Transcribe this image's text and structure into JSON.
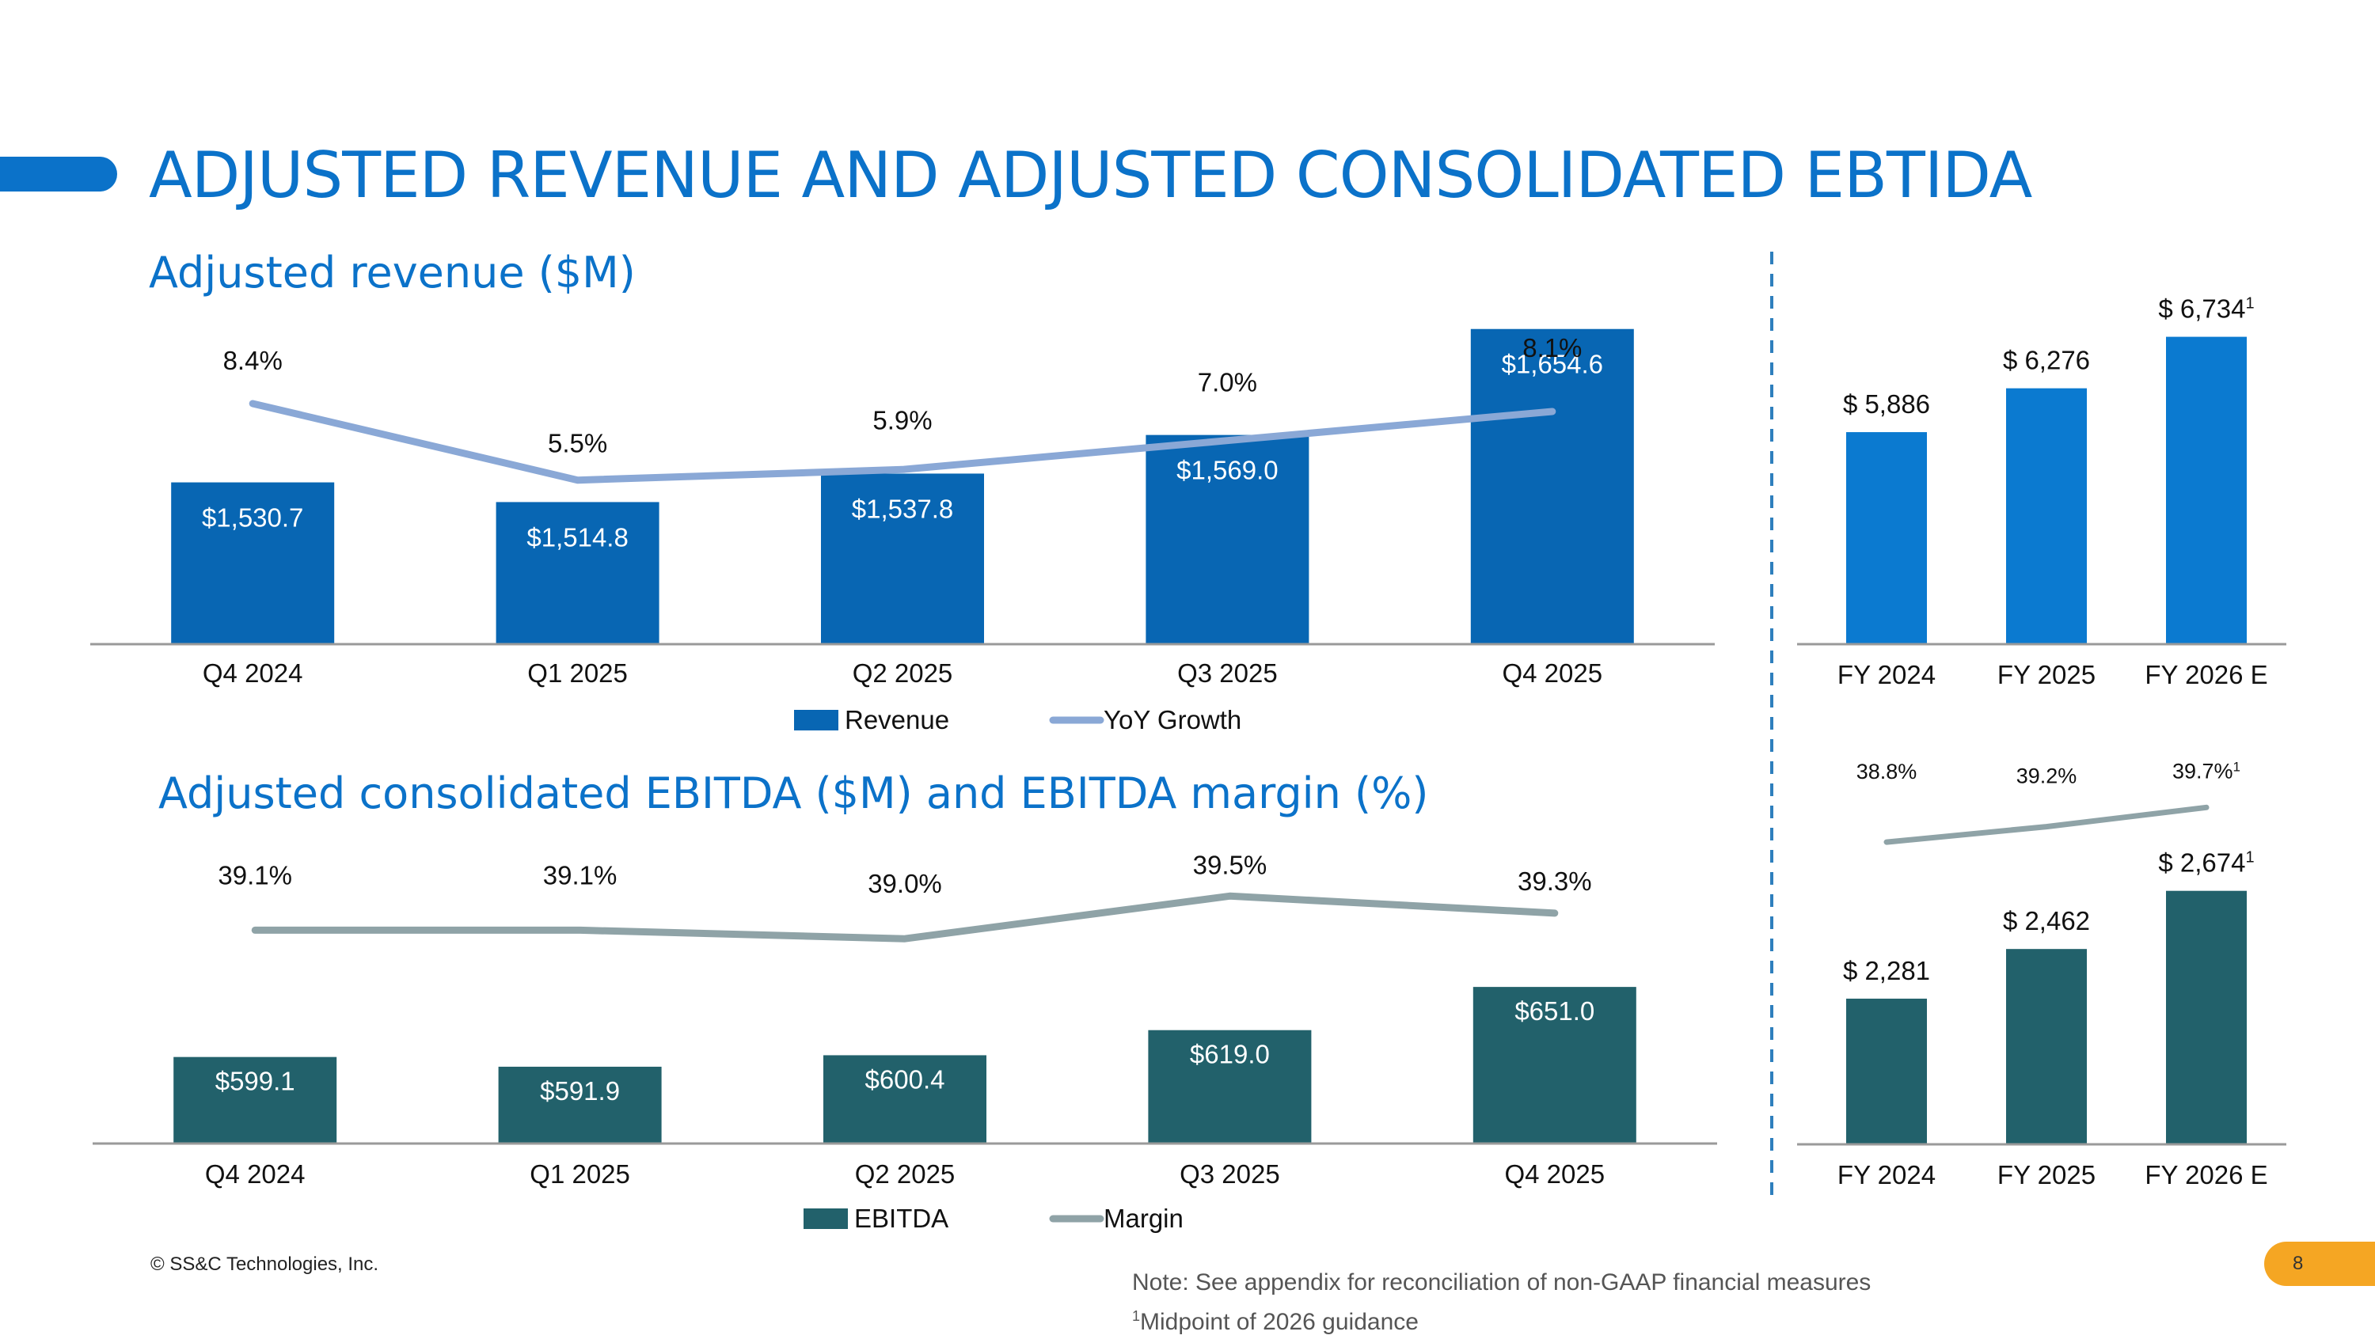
{
  "slide": {
    "title": "ADJUSTED REVENUE AND ADJUSTED CONSOLIDATED EBTIDA",
    "copyright": "© SS&C Technologies, Inc.",
    "page_number": "8",
    "note": "Note: See appendix for reconciliation of non-GAAP financial measures",
    "footnote_marker": "1",
    "footnote_text": "Midpoint of 2026 guidance",
    "colors": {
      "title_blue": "#0b72c9",
      "revenue_bar": "#0866b3",
      "growth_line": "#8aa8d6",
      "annual_revenue_bar": "#0b7ad0",
      "ebitda_bar": "#22616b",
      "margin_line": "#8fa3a7",
      "axis": "#9a9a9a",
      "page_badge": "#f5a623",
      "divider": "#2e7fbd"
    }
  },
  "chart_data": [
    {
      "id": "quarterly-revenue",
      "type": "bar",
      "title": "Adjusted revenue ($M)",
      "categories": [
        "Q4 2024",
        "Q1 2025",
        "Q2 2025",
        "Q3 2025",
        "Q4 2025"
      ],
      "ylim": [
        1400,
        1680
      ],
      "series": [
        {
          "name": "Revenue",
          "values": [
            1530.7,
            1514.8,
            1537.8,
            1569.0,
            1654.6
          ],
          "labels": [
            "$1,530.7",
            "$1,514.8",
            "$1,537.8",
            "$1,569.0",
            "$1,654.6"
          ]
        }
      ],
      "line_series": {
        "name": "YoY Growth",
        "values": [
          8.4,
          5.5,
          5.9,
          7.0,
          8.1
        ],
        "labels": [
          "8.4%",
          "5.5%",
          "5.9%",
          "7.0%",
          "8.1%"
        ],
        "ylim": [
          3.0,
          10.5
        ]
      },
      "legend": [
        "Revenue",
        "YoY Growth"
      ],
      "legend_position": "bottom"
    },
    {
      "id": "quarterly-ebitda",
      "type": "bar",
      "title": "Adjusted consolidated EBITDA ($M) and EBITDA margin (%)",
      "categories": [
        "Q4 2024",
        "Q1 2025",
        "Q2 2025",
        "Q3 2025",
        "Q4 2025"
      ],
      "ylim": [
        535,
        705
      ],
      "series": [
        {
          "name": "EBITDA",
          "values": [
            599.1,
            591.9,
            600.4,
            619.0,
            651.0
          ],
          "labels": [
            "$599.1",
            "$591.9",
            "$600.4",
            "$619.0",
            "$651.0"
          ]
        }
      ],
      "line_series": {
        "name": "Margin",
        "values": [
          39.1,
          39.1,
          39.0,
          39.5,
          39.3
        ],
        "labels": [
          "39.1%",
          "39.1%",
          "39.0%",
          "39.5%",
          "39.3%"
        ],
        "ylim": [
          38.0,
          39.8
        ]
      },
      "legend": [
        "EBITDA",
        "Margin"
      ],
      "legend_position": "bottom"
    },
    {
      "id": "annual-revenue",
      "type": "bar",
      "categories": [
        "FY 2024",
        "FY 2025",
        "FY 2026 E"
      ],
      "ylim": [
        4000,
        6900
      ],
      "series": [
        {
          "name": "Revenue",
          "values": [
            5886,
            6276,
            6734
          ],
          "labels": [
            "$ 5,886",
            "$ 6,276",
            "$ 6,734"
          ],
          "label_superscripts": [
            "",
            "",
            "1"
          ]
        }
      ]
    },
    {
      "id": "annual-ebitda",
      "type": "bar",
      "categories": [
        "FY 2024",
        "FY 2025",
        "FY 2026 E"
      ],
      "ylim": [
        1750,
        2800
      ],
      "series": [
        {
          "name": "EBITDA",
          "values": [
            2281,
            2462,
            2674
          ],
          "labels": [
            "$ 2,281",
            "$ 2,462",
            "$ 2,674"
          ],
          "label_superscripts": [
            "",
            "",
            "1"
          ]
        }
      ],
      "line_series": {
        "name": "Margin",
        "values": [
          38.8,
          39.2,
          39.7
        ],
        "labels": [
          "38.8%",
          "39.2%",
          "39.7%"
        ],
        "label_superscripts": [
          "",
          "",
          "1"
        ],
        "ylim": [
          37.3,
          40.2
        ]
      }
    }
  ]
}
